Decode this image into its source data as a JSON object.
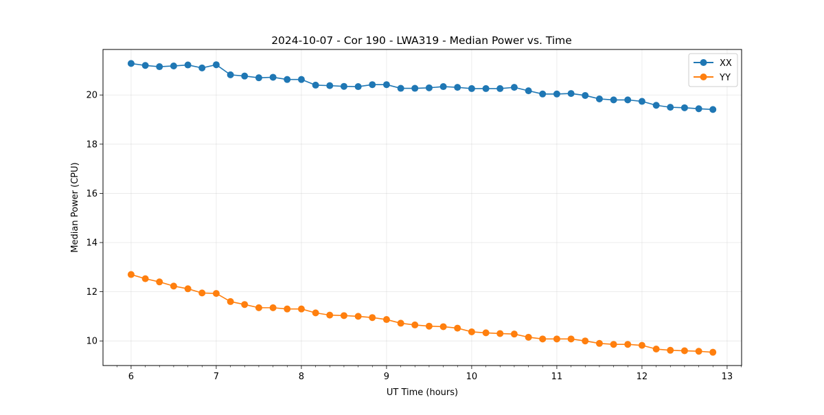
{
  "chart_data": {
    "type": "line",
    "title": "2024-10-07 - Cor 190 - LWA319 - Median Power vs. Time",
    "xlabel": "UT Time (hours)",
    "ylabel": "Median Power (CPU)",
    "xlim": [
      5.67,
      13.17
    ],
    "ylim": [
      9.0,
      21.85
    ],
    "xticks": [
      6,
      7,
      8,
      9,
      10,
      11,
      12,
      13
    ],
    "yticks": [
      10,
      12,
      14,
      16,
      18,
      20
    ],
    "grid": true,
    "legend_position": "top-right",
    "x": [
      6.0,
      6.167,
      6.333,
      6.5,
      6.667,
      6.833,
      7.0,
      7.167,
      7.333,
      7.5,
      7.667,
      7.833,
      8.0,
      8.167,
      8.333,
      8.5,
      8.667,
      8.833,
      9.0,
      9.167,
      9.333,
      9.5,
      9.667,
      9.833,
      10.0,
      10.167,
      10.333,
      10.5,
      10.667,
      10.833,
      11.0,
      11.167,
      11.333,
      11.5,
      11.667,
      11.833,
      12.0,
      12.167,
      12.333,
      12.5,
      12.667,
      12.833
    ],
    "series": [
      {
        "name": "XX",
        "color": "#1f77b4",
        "values": [
          21.28,
          21.2,
          21.15,
          21.18,
          21.22,
          21.1,
          21.23,
          20.82,
          20.77,
          20.7,
          20.72,
          20.63,
          20.63,
          20.4,
          20.38,
          20.35,
          20.34,
          20.42,
          20.42,
          20.27,
          20.27,
          20.29,
          20.34,
          20.31,
          20.26,
          20.26,
          20.26,
          20.31,
          20.17,
          20.04,
          20.04,
          20.06,
          19.98,
          19.84,
          19.8,
          19.8,
          19.74,
          19.58,
          19.5,
          19.48,
          19.44,
          19.41
        ]
      },
      {
        "name": "YY",
        "color": "#ff7f0e",
        "values": [
          12.7,
          12.53,
          12.4,
          12.23,
          12.12,
          11.95,
          11.93,
          11.6,
          11.48,
          11.35,
          11.35,
          11.3,
          11.3,
          11.14,
          11.05,
          11.03,
          11.0,
          10.95,
          10.87,
          10.72,
          10.65,
          10.6,
          10.58,
          10.52,
          10.37,
          10.33,
          10.3,
          10.28,
          10.15,
          10.08,
          10.08,
          10.08,
          10.0,
          9.9,
          9.86,
          9.86,
          9.82,
          9.67,
          9.62,
          9.6,
          9.58,
          9.54
        ]
      }
    ]
  }
}
